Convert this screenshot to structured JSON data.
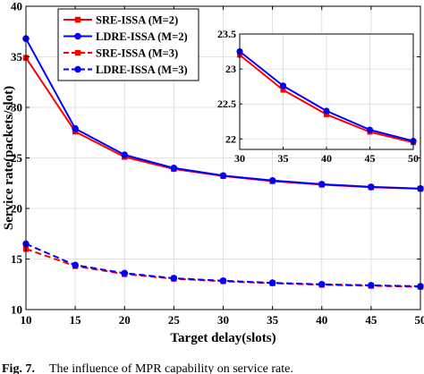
{
  "chart_data": {
    "type": "line",
    "title": "",
    "xlabel": "Target delay(slots)",
    "ylabel": "Service rate(packets/slot)",
    "xlim": [
      10,
      50
    ],
    "ylim": [
      10,
      40
    ],
    "xticks": [
      10,
      15,
      20,
      25,
      30,
      35,
      40,
      45,
      50
    ],
    "yticks": [
      10,
      15,
      20,
      25,
      30,
      35,
      40
    ],
    "grid": true,
    "legend_position": "top-left",
    "series": [
      {
        "name": "SRE-ISSA (M=2)",
        "color": "#ff0000",
        "linestyle": "solid",
        "marker": "square",
        "x": [
          10,
          15,
          20,
          25,
          30,
          35,
          40,
          45,
          50
        ],
        "y": [
          34.9,
          27.6,
          25.1,
          23.9,
          23.2,
          22.7,
          22.35,
          22.1,
          21.95
        ]
      },
      {
        "name": "LDRE-ISSA (M=2)",
        "color": "#0000ff",
        "linestyle": "solid",
        "marker": "circle",
        "x": [
          10,
          15,
          20,
          25,
          30,
          35,
          40,
          45,
          50
        ],
        "y": [
          36.8,
          27.9,
          25.3,
          24.0,
          23.25,
          22.76,
          22.4,
          22.13,
          21.97
        ]
      },
      {
        "name": "SRE-ISSA (M=3)",
        "color": "#ff0000",
        "linestyle": "dashed",
        "marker": "square",
        "x": [
          10,
          15,
          20,
          25,
          30,
          35,
          40,
          45,
          50
        ],
        "y": [
          16.0,
          14.3,
          13.5,
          13.05,
          12.8,
          12.6,
          12.45,
          12.35,
          12.25
        ]
      },
      {
        "name": "LDRE-ISSA (M=3)",
        "color": "#0000ff",
        "linestyle": "dashed",
        "marker": "circle",
        "x": [
          10,
          15,
          20,
          25,
          30,
          35,
          40,
          45,
          50
        ],
        "y": [
          16.5,
          14.4,
          13.6,
          13.1,
          12.85,
          12.65,
          12.5,
          12.4,
          12.3
        ]
      }
    ],
    "inset": {
      "xlim": [
        30,
        50
      ],
      "ylim": [
        21.85,
        23.5
      ],
      "xticks": [
        30,
        35,
        40,
        45,
        50
      ],
      "yticks": [
        22,
        22.5,
        23,
        23.5
      ],
      "grid": true,
      "series_shown": [
        "SRE-ISSA (M=2)",
        "LDRE-ISSA (M=2)"
      ]
    }
  },
  "caption": {
    "label": "Fig. 7.",
    "text": "The influence of MPR capability on service rate."
  }
}
